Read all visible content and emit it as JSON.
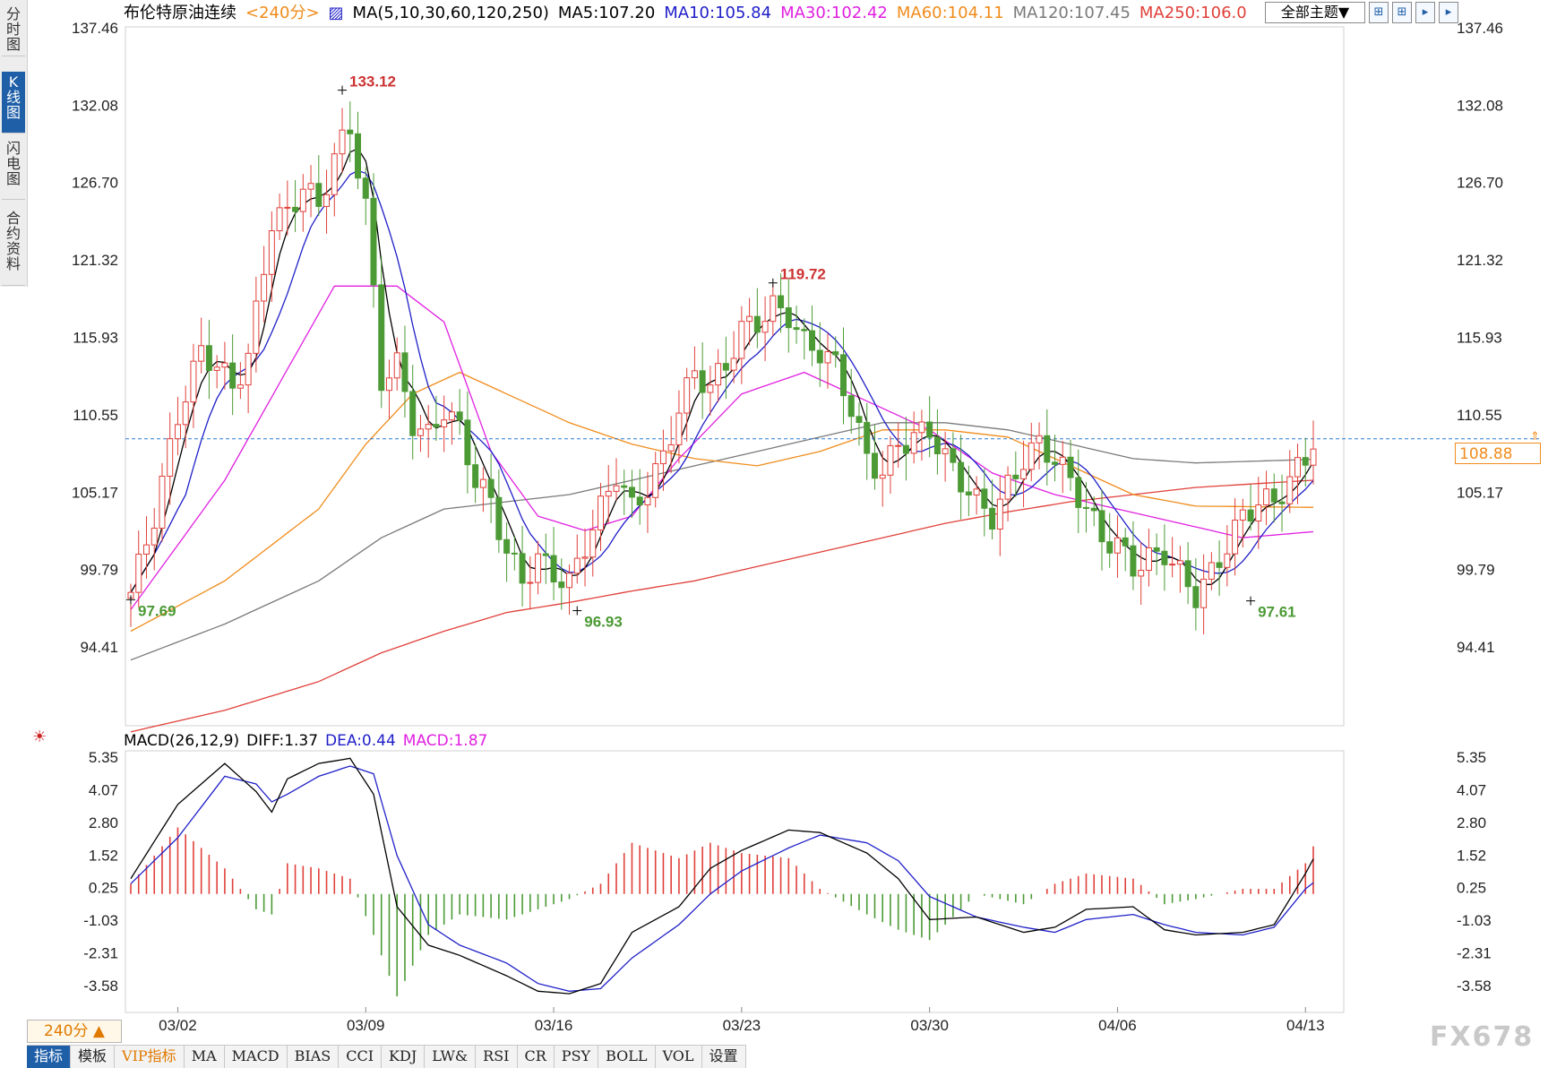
{
  "sidebar": {
    "tabs": [
      {
        "label": "分时图",
        "active": false
      },
      {
        "label": "K线图",
        "active": true
      },
      {
        "label": "闪电图",
        "active": false
      },
      {
        "label": "合约资料",
        "active": false
      }
    ]
  },
  "header": {
    "title": "布伦特原油连续",
    "period_tag": "<240分>",
    "ma_label": "MA(5,10,30,60,120,250)",
    "ma_values": [
      "MA5:107.20",
      "MA10:105.84",
      "MA30:102.42",
      "MA60:104.11",
      "MA120:107.45",
      "MA250:106.0"
    ],
    "theme_select": "全部主题▼",
    "toolbar_icons": [
      "grid-icon",
      "grid-alt-icon",
      "play-left-icon",
      "play-right-icon"
    ]
  },
  "macd_panel": {
    "label": "MACD(26,12,9)",
    "diff": "DIFF:1.37",
    "dea": "DEA:0.44",
    "macd": "MACD:1.87"
  },
  "bottom": {
    "period": "240分 ▲",
    "tabs": [
      "指标",
      "模板",
      "VIP指标",
      "MA",
      "MACD",
      "BIAS",
      "CCI",
      "KDJ",
      "LW&",
      "RSI",
      "CR",
      "PSY",
      "BOLL",
      "VOL",
      "设置"
    ],
    "watermark": "FX678"
  },
  "last_price": "108.88",
  "colors": {
    "up": "#e0403a",
    "down": "#4c9a35",
    "ma5": "#000000",
    "ma10": "#1f1fc8",
    "ma30": "#e020e0",
    "ma60": "#f08c1c",
    "ma120": "#7a7a7a",
    "ma250": "#e0403a",
    "dea": "#1f1fc8",
    "diff": "#000000"
  },
  "chart_data": {
    "type": "candlestick",
    "price_axis": {
      "ticks": [
        137.46,
        132.08,
        126.7,
        121.32,
        115.93,
        110.55,
        105.17,
        99.79,
        94.41
      ],
      "tick_labels": [
        "137.46",
        "132.08",
        "126.70",
        "121.32",
        "115.93",
        "110.55",
        "105.17",
        "99.79",
        "94.41"
      ]
    },
    "macd_axis": {
      "ticks": [
        5.35,
        4.07,
        2.8,
        1.52,
        0.25,
        -1.03,
        -2.31,
        -3.58
      ],
      "tick_labels": [
        "5.35",
        "4.07",
        "2.80",
        "1.52",
        "0.25",
        "-1.03",
        "-2.31",
        "-3.58"
      ]
    },
    "date_ticks": [
      {
        "label": "03/02",
        "bar": 6
      },
      {
        "label": "03/09",
        "bar": 30
      },
      {
        "label": "03/16",
        "bar": 54
      },
      {
        "label": "03/23",
        "bar": 78
      },
      {
        "label": "03/30",
        "bar": 102
      },
      {
        "label": "04/06",
        "bar": 126
      },
      {
        "label": "04/13",
        "bar": 150
      }
    ],
    "annotations": [
      {
        "label": "133.12",
        "bar": 27,
        "price": 133.12,
        "kind": "high"
      },
      {
        "label": "119.72",
        "bar": 82,
        "price": 119.72,
        "kind": "high"
      },
      {
        "label": "97.69",
        "bar": 0,
        "price": 97.69,
        "kind": "low"
      },
      {
        "label": "96.93",
        "bar": 57,
        "price": 96.93,
        "kind": "low"
      },
      {
        "label": "97.61",
        "bar": 143,
        "price": 97.61,
        "kind": "low"
      }
    ],
    "close_anchors": [
      [
        0,
        98.2
      ],
      [
        3,
        103.5
      ],
      [
        6,
        110.5
      ],
      [
        9,
        115.0
      ],
      [
        11,
        114.0
      ],
      [
        13,
        112.5
      ],
      [
        15,
        114.5
      ],
      [
        18,
        124.0
      ],
      [
        20,
        124.5
      ],
      [
        22,
        126.5
      ],
      [
        24,
        125.0
      ],
      [
        26,
        128.5
      ],
      [
        28,
        130.5
      ],
      [
        30,
        125.0
      ],
      [
        32,
        113.0
      ],
      [
        34,
        114.0
      ],
      [
        36,
        110.0
      ],
      [
        38,
        109.0
      ],
      [
        40,
        111.0
      ],
      [
        42,
        109.5
      ],
      [
        44,
        106.0
      ],
      [
        46,
        104.5
      ],
      [
        48,
        101.0
      ],
      [
        50,
        99.0
      ],
      [
        52,
        100.5
      ],
      [
        54,
        99.5
      ],
      [
        56,
        98.8
      ],
      [
        58,
        101.5
      ],
      [
        60,
        104.0
      ],
      [
        62,
        106.5
      ],
      [
        64,
        104.0
      ],
      [
        66,
        105.5
      ],
      [
        68,
        107.5
      ],
      [
        70,
        111.0
      ],
      [
        72,
        113.5
      ],
      [
        74,
        112.5
      ],
      [
        76,
        114.0
      ],
      [
        78,
        116.5
      ],
      [
        80,
        117.0
      ],
      [
        82,
        118.0
      ],
      [
        84,
        117.5
      ],
      [
        86,
        115.5
      ],
      [
        88,
        115.0
      ],
      [
        90,
        114.0
      ],
      [
        92,
        111.0
      ],
      [
        94,
        107.5
      ],
      [
        96,
        106.5
      ],
      [
        98,
        108.5
      ],
      [
        100,
        109.0
      ],
      [
        102,
        109.5
      ],
      [
        104,
        107.5
      ],
      [
        106,
        106.0
      ],
      [
        108,
        104.5
      ],
      [
        110,
        103.5
      ],
      [
        112,
        105.5
      ],
      [
        114,
        107.5
      ],
      [
        116,
        108.5
      ],
      [
        118,
        107.5
      ],
      [
        120,
        106.0
      ],
      [
        122,
        104.0
      ],
      [
        124,
        102.0
      ],
      [
        126,
        101.5
      ],
      [
        128,
        100.0
      ],
      [
        130,
        100.5
      ],
      [
        132,
        101.0
      ],
      [
        134,
        99.5
      ],
      [
        136,
        98.0
      ],
      [
        138,
        99.5
      ],
      [
        140,
        101.5
      ],
      [
        142,
        103.5
      ],
      [
        144,
        104.5
      ],
      [
        146,
        104.5
      ],
      [
        148,
        106.0
      ],
      [
        150,
        107.5
      ],
      [
        151,
        108.88
      ]
    ],
    "ma_anchors": {
      "ma30": [
        [
          0,
          97.0
        ],
        [
          12,
          106.0
        ],
        [
          26,
          119.5
        ],
        [
          34,
          119.5
        ],
        [
          40,
          117.0
        ],
        [
          46,
          108.0
        ],
        [
          52,
          103.5
        ],
        [
          58,
          102.5
        ],
        [
          64,
          103.5
        ],
        [
          70,
          107.5
        ],
        [
          78,
          112.0
        ],
        [
          86,
          113.5
        ],
        [
          94,
          111.5
        ],
        [
          102,
          109.5
        ],
        [
          110,
          106.5
        ],
        [
          118,
          105.0
        ],
        [
          126,
          104.0
        ],
        [
          134,
          103.0
        ],
        [
          142,
          102.0
        ],
        [
          151,
          102.42
        ]
      ],
      "ma60": [
        [
          0,
          95.5
        ],
        [
          12,
          99.0
        ],
        [
          24,
          104.0
        ],
        [
          30,
          108.5
        ],
        [
          36,
          112.0
        ],
        [
          42,
          113.5
        ],
        [
          48,
          112.0
        ],
        [
          56,
          110.0
        ],
        [
          64,
          108.5
        ],
        [
          72,
          107.5
        ],
        [
          80,
          107.0
        ],
        [
          88,
          108.0
        ],
        [
          96,
          109.5
        ],
        [
          104,
          109.5
        ],
        [
          112,
          109.0
        ],
        [
          120,
          107.0
        ],
        [
          128,
          105.0
        ],
        [
          136,
          104.2
        ],
        [
          151,
          104.11
        ]
      ],
      "ma120": [
        [
          0,
          93.5
        ],
        [
          12,
          96.0
        ],
        [
          24,
          99.0
        ],
        [
          32,
          102.0
        ],
        [
          40,
          104.0
        ],
        [
          48,
          104.5
        ],
        [
          56,
          105.0
        ],
        [
          64,
          106.0
        ],
        [
          72,
          107.0
        ],
        [
          80,
          108.0
        ],
        [
          88,
          109.0
        ],
        [
          96,
          110.0
        ],
        [
          104,
          110.0
        ],
        [
          112,
          109.5
        ],
        [
          120,
          108.5
        ],
        [
          128,
          107.5
        ],
        [
          136,
          107.2
        ],
        [
          151,
          107.45
        ]
      ],
      "ma250": [
        [
          0,
          88.5
        ],
        [
          12,
          90.0
        ],
        [
          24,
          92.0
        ],
        [
          32,
          94.0
        ],
        [
          40,
          95.5
        ],
        [
          48,
          96.8
        ],
        [
          56,
          97.5
        ],
        [
          64,
          98.3
        ],
        [
          72,
          99.0
        ],
        [
          80,
          100.0
        ],
        [
          88,
          101.0
        ],
        [
          96,
          102.0
        ],
        [
          104,
          103.0
        ],
        [
          112,
          103.8
        ],
        [
          120,
          104.5
        ],
        [
          128,
          105.0
        ],
        [
          136,
          105.5
        ],
        [
          151,
          106.0
        ]
      ]
    },
    "macd_anchors": {
      "diff": [
        [
          0,
          0.6
        ],
        [
          6,
          3.5
        ],
        [
          12,
          5.1
        ],
        [
          16,
          4.0
        ],
        [
          18,
          3.2
        ],
        [
          20,
          4.5
        ],
        [
          24,
          5.1
        ],
        [
          28,
          5.3
        ],
        [
          31,
          3.9
        ],
        [
          34,
          -0.5
        ],
        [
          38,
          -2.0
        ],
        [
          42,
          -2.4
        ],
        [
          48,
          -3.2
        ],
        [
          52,
          -3.8
        ],
        [
          56,
          -3.9
        ],
        [
          60,
          -3.5
        ],
        [
          64,
          -1.5
        ],
        [
          70,
          -0.5
        ],
        [
          74,
          1.0
        ],
        [
          78,
          1.7
        ],
        [
          84,
          2.5
        ],
        [
          88,
          2.4
        ],
        [
          94,
          1.6
        ],
        [
          98,
          0.6
        ],
        [
          102,
          -1.0
        ],
        [
          108,
          -0.9
        ],
        [
          114,
          -1.5
        ],
        [
          118,
          -1.3
        ],
        [
          122,
          -0.6
        ],
        [
          128,
          -0.5
        ],
        [
          132,
          -1.4
        ],
        [
          136,
          -1.6
        ],
        [
          142,
          -1.5
        ],
        [
          146,
          -1.2
        ],
        [
          150,
          0.8
        ],
        [
          151,
          1.37
        ]
      ],
      "dea": [
        [
          0,
          0.4
        ],
        [
          6,
          2.2
        ],
        [
          12,
          4.6
        ],
        [
          16,
          4.3
        ],
        [
          18,
          3.6
        ],
        [
          20,
          3.9
        ],
        [
          24,
          4.6
        ],
        [
          28,
          5.0
        ],
        [
          31,
          4.7
        ],
        [
          34,
          1.5
        ],
        [
          38,
          -1.2
        ],
        [
          42,
          -2.0
        ],
        [
          48,
          -2.7
        ],
        [
          52,
          -3.5
        ],
        [
          56,
          -3.8
        ],
        [
          60,
          -3.7
        ],
        [
          64,
          -2.5
        ],
        [
          70,
          -1.2
        ],
        [
          74,
          0.0
        ],
        [
          78,
          0.9
        ],
        [
          84,
          1.8
        ],
        [
          88,
          2.3
        ],
        [
          94,
          2.0
        ],
        [
          98,
          1.3
        ],
        [
          102,
          -0.1
        ],
        [
          108,
          -0.9
        ],
        [
          114,
          -1.3
        ],
        [
          118,
          -1.5
        ],
        [
          122,
          -1.0
        ],
        [
          128,
          -0.8
        ],
        [
          132,
          -1.2
        ],
        [
          136,
          -1.5
        ],
        [
          142,
          -1.6
        ],
        [
          146,
          -1.3
        ],
        [
          150,
          0.2
        ],
        [
          151,
          0.44
        ]
      ]
    }
  }
}
